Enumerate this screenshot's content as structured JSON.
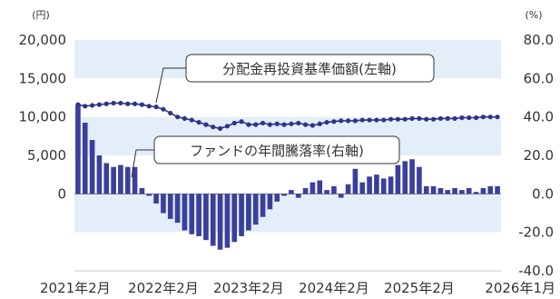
{
  "colors": {
    "band": "#e3eef8",
    "bar": "#3b3f9c",
    "line": "#2f3488",
    "dot": "#2f3488",
    "axis": "#777777",
    "callout_border": "#333333"
  },
  "chart_data": {
    "type": "bar+line",
    "left_axis": {
      "unit": "(円)",
      "ylim": [
        -10000,
        20000
      ],
      "ticks": [
        "20,000",
        "15,000",
        "10,000",
        "5,000",
        "0"
      ],
      "tick_values": [
        20000,
        15000,
        10000,
        5000,
        0
      ]
    },
    "right_axis": {
      "unit": "(%)",
      "ylim": [
        -40,
        80
      ],
      "ticks": [
        "80.0",
        "60.0",
        "40.0",
        "20.0",
        "0.0",
        "-20.0",
        "-40.0"
      ],
      "tick_values": [
        80,
        60,
        40,
        20,
        0,
        -20,
        -40
      ]
    },
    "x_labels": [
      "2021年2月",
      "2022年2月",
      "2023年2月",
      "2024年2月",
      "2025年2月",
      "2026年1月"
    ],
    "x_label_positions": [
      0,
      12,
      24,
      36,
      48,
      59
    ],
    "series": [
      {
        "name": "分配金再投資基準価額(左軸)",
        "type": "line",
        "axis": "left",
        "values": [
          11600,
          11400,
          11500,
          11600,
          11700,
          11800,
          11800,
          11700,
          11700,
          11600,
          11400,
          11300,
          11000,
          10500,
          10000,
          9800,
          9600,
          9300,
          9000,
          8700,
          8500,
          8800,
          9200,
          9400,
          9000,
          9000,
          9200,
          9000,
          9100,
          9000,
          9100,
          9200,
          9000,
          8900,
          9100,
          9300,
          9400,
          9500,
          9500,
          9500,
          9600,
          9600,
          9600,
          9600,
          9700,
          9700,
          9700,
          9800,
          9800,
          9700,
          9700,
          9800,
          9800,
          9800,
          9900,
          9900,
          9900,
          10000,
          10000,
          10000
        ]
      },
      {
        "name": "ファンドの年間騰落率(右軸)",
        "type": "bar",
        "axis": "right",
        "values": [
          46.0,
          37.0,
          28.0,
          20.0,
          16.0,
          14.0,
          15.0,
          14.0,
          14.0,
          3.0,
          -1.0,
          -5.0,
          -10.0,
          -13.0,
          -15.0,
          -19.0,
          -21.0,
          -22.0,
          -24.0,
          -27.0,
          -29.0,
          -28.0,
          -25.0,
          -22.0,
          -19.0,
          -16.0,
          -12.0,
          -8.0,
          -4.0,
          -1.0,
          2.0,
          -2.0,
          3.0,
          6.0,
          7.0,
          2.0,
          4.0,
          -2.0,
          5.0,
          13.0,
          6.0,
          9.0,
          10.0,
          8.0,
          9.0,
          15.0,
          17.0,
          18.0,
          14.0,
          4.0,
          4.0,
          3.0,
          2.0,
          3.0,
          2.0,
          3.0,
          1.0,
          3.0,
          4.0,
          4.0
        ]
      }
    ],
    "grid": false,
    "legend": "callout labels"
  },
  "callouts": {
    "line_label": "分配金再投資基準価額(左軸)",
    "bar_label": "ファンドの年間騰落率(右軸)"
  }
}
